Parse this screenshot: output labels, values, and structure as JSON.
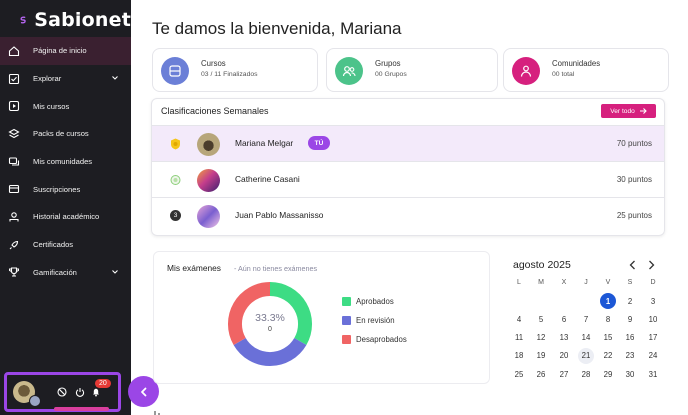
{
  "app": {
    "name": "Sabionet"
  },
  "sidebar": {
    "items": [
      {
        "label": "Página de inicio",
        "icon": "home-icon"
      },
      {
        "label": "Explorar",
        "icon": "explore-icon"
      },
      {
        "label": "Mis cursos",
        "icon": "play-square-icon"
      },
      {
        "label": "Packs de cursos",
        "icon": "layers-icon"
      },
      {
        "label": "Mis comunidades",
        "icon": "chat-icon"
      },
      {
        "label": "Suscripciones",
        "icon": "card-icon"
      },
      {
        "label": "Historial académico",
        "icon": "graduation-icon"
      },
      {
        "label": "Certificados",
        "icon": "rocket-icon"
      },
      {
        "label": "Gamificación",
        "icon": "trophy-icon"
      }
    ],
    "user": {
      "notifications": "20"
    }
  },
  "main": {
    "welcome": "Te damos la bienvenida, Mariana",
    "stats": [
      {
        "title": "Cursos",
        "sub": "03 / 11 Finalizados",
        "color": "#6b7fd7"
      },
      {
        "title": "Grupos",
        "sub": "00 Grupos",
        "color": "#4cc38a"
      },
      {
        "title": "Comunidades",
        "sub": "00 total",
        "color": "#d6207e"
      }
    ],
    "ranking": {
      "title": "Clasificaciones Semanales",
      "button": "Ver todo",
      "rows": [
        {
          "position": "1",
          "name": "Mariana Melgar",
          "badge": "TÚ",
          "points": "70 puntos"
        },
        {
          "position": "2",
          "name": "Catherine Casani",
          "points": "30 puntos"
        },
        {
          "position": "3",
          "name": "Juan Pablo Massanisso",
          "points": "25 puntos"
        }
      ]
    },
    "exams": {
      "title": "Mis exámenes",
      "subtitle": "- Aún no tienes exámenes",
      "percent": "33.3%",
      "count": "0",
      "legend": [
        {
          "label": "Aprobados",
          "color": "#3ddc84"
        },
        {
          "label": "En revisión",
          "color": "#6a70d8"
        },
        {
          "label": "Desaprobados",
          "color": "#f06464"
        }
      ]
    },
    "calendar": {
      "title": "agosto 2025",
      "dow": [
        "L",
        "M",
        "X",
        "J",
        "V",
        "S",
        "D"
      ],
      "weeks": [
        [
          "",
          "",
          "",
          "",
          "1",
          "2",
          "3"
        ],
        [
          "4",
          "5",
          "6",
          "7",
          "8",
          "9",
          "10"
        ],
        [
          "11",
          "12",
          "13",
          "14",
          "15",
          "16",
          "17"
        ],
        [
          "18",
          "19",
          "20",
          "21",
          "22",
          "23",
          "24"
        ],
        [
          "25",
          "26",
          "27",
          "28",
          "29",
          "30",
          "31"
        ]
      ],
      "today": "1",
      "highlighted": "21"
    }
  }
}
